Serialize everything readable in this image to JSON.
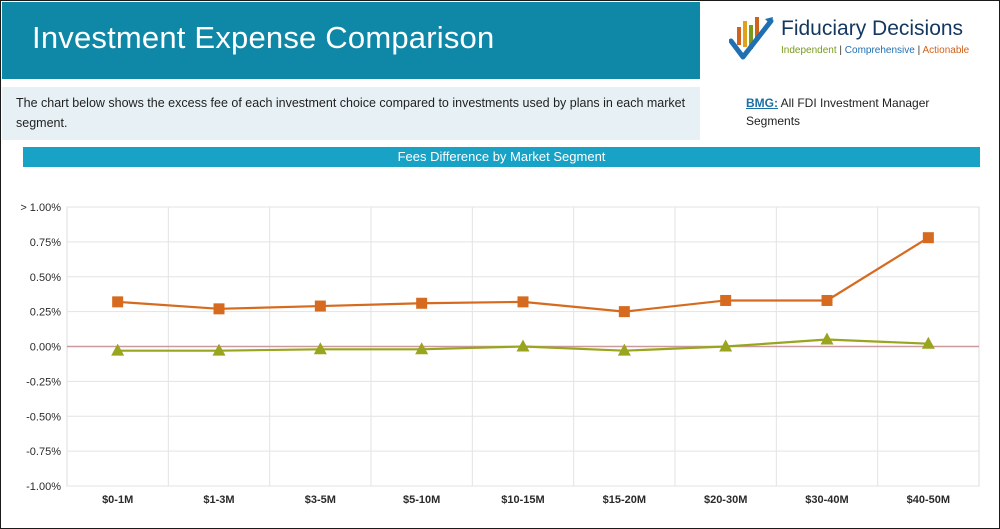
{
  "header": {
    "title": "Investment Expense Comparison",
    "description": "The chart below shows the excess fee of each investment choice compared to investments used by plans in each market segment."
  },
  "logo": {
    "name": "Fiduciary Decisions",
    "tagline_1": "Independent",
    "tagline_2": "Comprehensive",
    "tagline_3": "Actionable",
    "separator": "|"
  },
  "bmg": {
    "link": "BMG:",
    "text": "All FDI Investment Manager Segments"
  },
  "chart_data": {
    "type": "line",
    "title": "Fees Difference by Market Segment",
    "categories": [
      "$0-1M",
      "$1-3M",
      "$3-5M",
      "$5-10M",
      "$10-15M",
      "$15-20M",
      "$20-30M",
      "$30-40M",
      "$40-50M"
    ],
    "series": [
      {
        "values": [
          0.32,
          0.27,
          0.29,
          0.31,
          0.32,
          0.25,
          0.33,
          0.33,
          0.78
        ],
        "color": "#d66b1f",
        "marker": "square"
      },
      {
        "values": [
          -0.03,
          -0.03,
          -0.02,
          -0.02,
          0.0,
          -0.03,
          0.0,
          0.05,
          0.02
        ],
        "color": "#99a51e",
        "marker": "triangle"
      }
    ],
    "ylim": [
      -1.0,
      1.0
    ],
    "yticks": [
      1.0,
      0.75,
      0.5,
      0.25,
      0.0,
      -0.25,
      -0.5,
      -0.75,
      -1.0
    ],
    "ytick_labels": [
      "> 1.00%",
      "0.75%",
      "0.50%",
      "0.25%",
      "0.00%",
      "-0.25%",
      "-0.50%",
      "-0.75%",
      "-1.00%"
    ],
    "zero_line_color": "#c9999c",
    "grid": true
  }
}
